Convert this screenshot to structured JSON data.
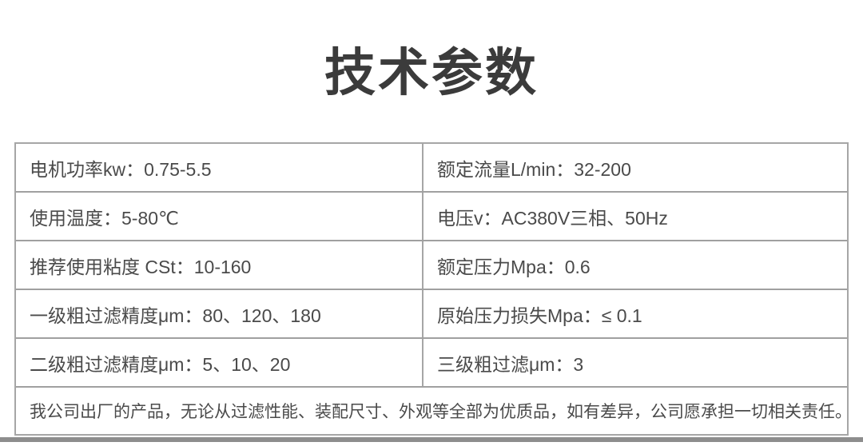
{
  "page": {
    "title": "技术参数"
  },
  "table": {
    "rows": [
      {
        "left": "电机功率kw：0.75-5.5",
        "right": "额定流量L/min：32-200"
      },
      {
        "left": "使用温度：5-80℃",
        "right": "电压v：AC380V三相、50Hz"
      },
      {
        "left": "推荐使用粘度 CSt：10-160",
        "right": "额定压力Mpa：0.6"
      },
      {
        "left": "一级粗过滤精度μm：80、120、180",
        "right": "原始压力损失Mpa：≤ 0.1"
      },
      {
        "left": "二级粗过滤精度μm：5、10、20",
        "right": "三级粗过滤μm：3"
      }
    ],
    "note": "我公司出厂的产品，无论从过滤性能、装配尺寸、外观等全部为优质品，如有差异，公司愿承担一切相关责任。"
  },
  "colors": {
    "title_text": "#3b3b3b",
    "cell_text": "#4a4a4a",
    "border_outer": "#a6a6a6",
    "border_inner": "#a0a0a0",
    "bottom_bar": "#8d8d8d",
    "background": "#ffffff"
  }
}
